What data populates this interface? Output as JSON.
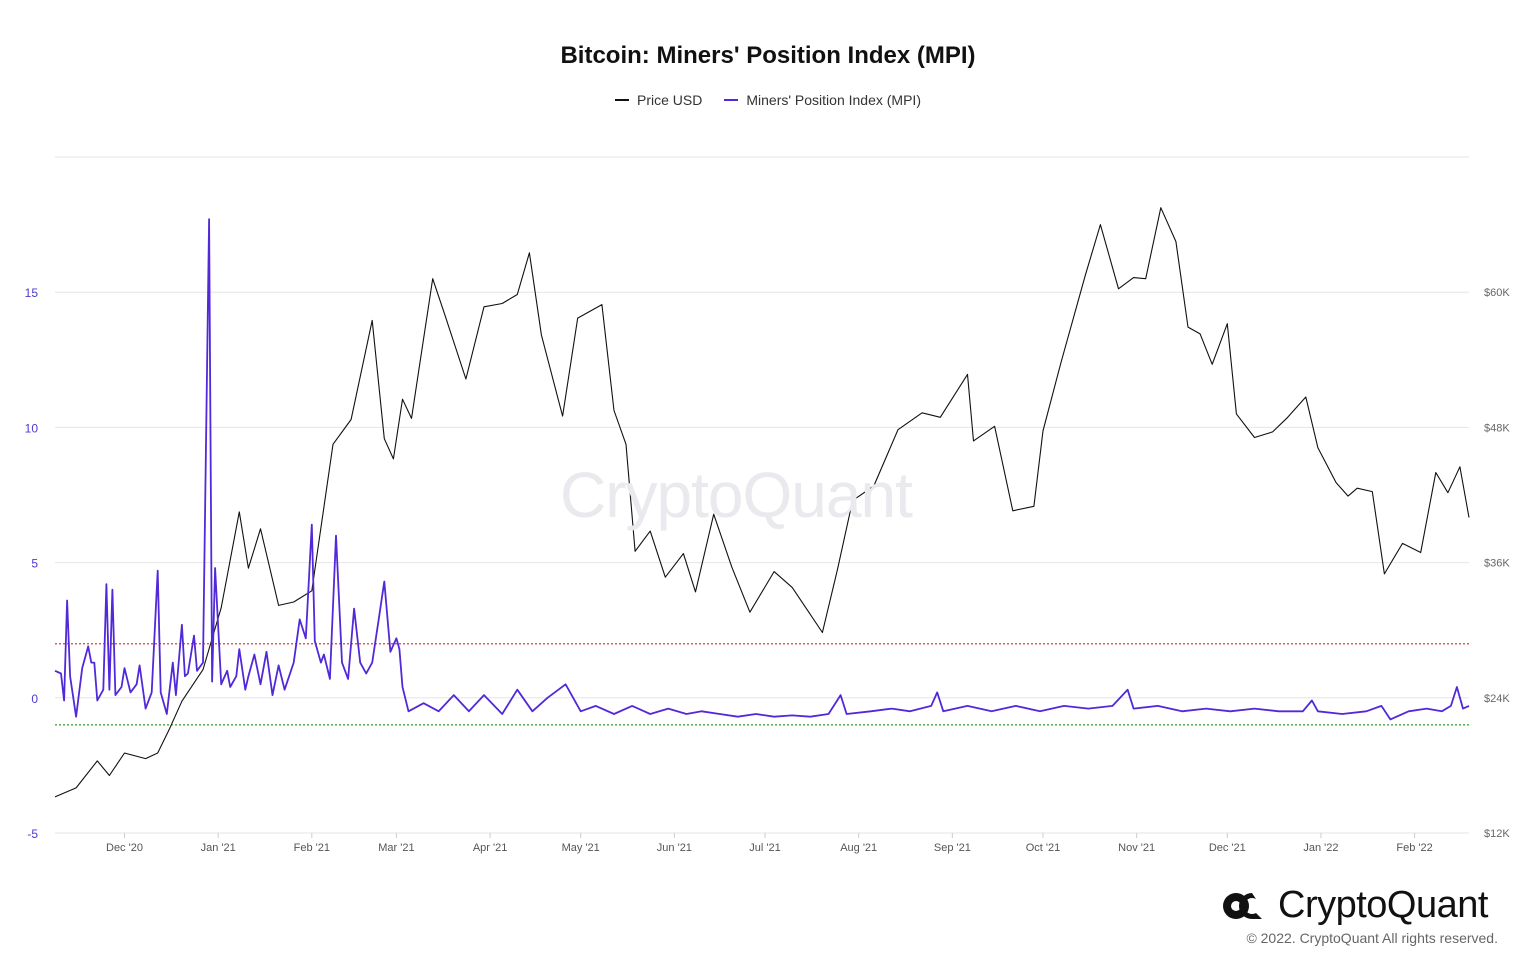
{
  "chart_data": {
    "title": "Bitcoin: Miners' Position Index (MPI)",
    "type": "line",
    "legend_position": "top-center",
    "grid": true,
    "x_ticks": [
      "Dec '20",
      "Jan '21",
      "Feb '21",
      "Mar '21",
      "Apr '21",
      "May '21",
      "Jun '21",
      "Jul '21",
      "Aug '21",
      "Sep '21",
      "Oct '21",
      "Nov '21",
      "Dec '21",
      "Jan '22",
      "Feb '22"
    ],
    "x_range": [
      "2020-11-08",
      "2022-02-19"
    ],
    "y_left": {
      "range": [
        -5,
        20
      ],
      "ticks": [
        "-5",
        "0",
        "5",
        "10",
        "15"
      ]
    },
    "y_right": {
      "range": [
        12000,
        72000
      ],
      "ticks": [
        "$12K",
        "$24K",
        "$36K",
        "$48K",
        "$60K"
      ]
    },
    "reference_lines": [
      {
        "value": 2,
        "color": "#e23a3a",
        "style": "dotted"
      },
      {
        "value": -1,
        "color": "#2e9e2e",
        "style": "dotted"
      }
    ],
    "series": [
      {
        "name": "Price USD",
        "axis": "right",
        "color": "#111111",
        "points": [
          [
            "2020-11-08",
            15200
          ],
          [
            "2020-11-15",
            16000
          ],
          [
            "2020-11-22",
            18400
          ],
          [
            "2020-11-26",
            17100
          ],
          [
            "2020-12-01",
            19100
          ],
          [
            "2020-12-08",
            18600
          ],
          [
            "2020-12-12",
            19100
          ],
          [
            "2020-12-16",
            21300
          ],
          [
            "2020-12-20",
            23700
          ],
          [
            "2020-12-27",
            26500
          ],
          [
            "2021-01-02",
            32000
          ],
          [
            "2021-01-08",
            40500
          ],
          [
            "2021-01-11",
            35500
          ],
          [
            "2021-01-15",
            39000
          ],
          [
            "2021-01-21",
            32200
          ],
          [
            "2021-01-26",
            32500
          ],
          [
            "2021-02-01",
            33500
          ],
          [
            "2021-02-08",
            46500
          ],
          [
            "2021-02-14",
            48700
          ],
          [
            "2021-02-21",
            57500
          ],
          [
            "2021-02-25",
            47000
          ],
          [
            "2021-02-28",
            45200
          ],
          [
            "2021-03-03",
            50500
          ],
          [
            "2021-03-06",
            48800
          ],
          [
            "2021-03-13",
            61200
          ],
          [
            "2021-03-17",
            58000
          ],
          [
            "2021-03-24",
            52300
          ],
          [
            "2021-03-30",
            58700
          ],
          [
            "2021-04-05",
            59000
          ],
          [
            "2021-04-10",
            59800
          ],
          [
            "2021-04-14",
            63500
          ],
          [
            "2021-04-18",
            56200
          ],
          [
            "2021-04-25",
            49000
          ],
          [
            "2021-04-30",
            57700
          ],
          [
            "2021-05-08",
            58900
          ],
          [
            "2021-05-12",
            49500
          ],
          [
            "2021-05-16",
            46500
          ],
          [
            "2021-05-19",
            37000
          ],
          [
            "2021-05-24",
            38800
          ],
          [
            "2021-05-29",
            34700
          ],
          [
            "2021-06-04",
            36800
          ],
          [
            "2021-06-08",
            33400
          ],
          [
            "2021-06-14",
            40300
          ],
          [
            "2021-06-20",
            35600
          ],
          [
            "2021-06-26",
            31600
          ],
          [
            "2021-07-04",
            35200
          ],
          [
            "2021-07-10",
            33800
          ],
          [
            "2021-07-15",
            31800
          ],
          [
            "2021-07-20",
            29800
          ],
          [
            "2021-07-25",
            35400
          ],
          [
            "2021-07-30",
            41500
          ],
          [
            "2021-08-06",
            42800
          ],
          [
            "2021-08-14",
            47800
          ],
          [
            "2021-08-22",
            49300
          ],
          [
            "2021-08-28",
            48900
          ],
          [
            "2021-09-06",
            52700
          ],
          [
            "2021-09-08",
            46800
          ],
          [
            "2021-09-15",
            48100
          ],
          [
            "2021-09-21",
            40600
          ],
          [
            "2021-09-28",
            41000
          ],
          [
            "2021-10-01",
            47700
          ],
          [
            "2021-10-07",
            53800
          ],
          [
            "2021-10-15",
            61500
          ],
          [
            "2021-10-20",
            66000
          ],
          [
            "2021-10-26",
            60300
          ],
          [
            "2021-10-31",
            61300
          ],
          [
            "2021-11-04",
            61200
          ],
          [
            "2021-11-09",
            67500
          ],
          [
            "2021-11-14",
            64500
          ],
          [
            "2021-11-18",
            56900
          ],
          [
            "2021-11-22",
            56300
          ],
          [
            "2021-11-26",
            53600
          ],
          [
            "2021-12-01",
            57200
          ],
          [
            "2021-12-04",
            49200
          ],
          [
            "2021-12-10",
            47100
          ],
          [
            "2021-12-16",
            47600
          ],
          [
            "2021-12-21",
            48900
          ],
          [
            "2021-12-27",
            50700
          ],
          [
            "2021-12-31",
            46200
          ],
          [
            "2022-01-06",
            43100
          ],
          [
            "2022-01-10",
            41900
          ],
          [
            "2022-01-13",
            42600
          ],
          [
            "2022-01-18",
            42300
          ],
          [
            "2022-01-22",
            35000
          ],
          [
            "2022-01-28",
            37700
          ],
          [
            "2022-02-03",
            36900
          ],
          [
            "2022-02-08",
            44000
          ],
          [
            "2022-02-12",
            42200
          ],
          [
            "2022-02-16",
            44500
          ],
          [
            "2022-02-19",
            40000
          ]
        ]
      },
      {
        "name": "Miners' Position Index (MPI)",
        "axis": "left",
        "color": "#5129d8",
        "points": [
          [
            "2020-11-08",
            1.0
          ],
          [
            "2020-11-10",
            0.9
          ],
          [
            "2020-11-11",
            -0.1
          ],
          [
            "2020-11-12",
            3.6
          ],
          [
            "2020-11-13",
            0.8
          ],
          [
            "2020-11-15",
            -0.7
          ],
          [
            "2020-11-17",
            1.1
          ],
          [
            "2020-11-19",
            1.9
          ],
          [
            "2020-11-20",
            1.3
          ],
          [
            "2020-11-21",
            1.3
          ],
          [
            "2020-11-22",
            -0.1
          ],
          [
            "2020-11-24",
            0.3
          ],
          [
            "2020-11-25",
            4.2
          ],
          [
            "2020-11-26",
            0.3
          ],
          [
            "2020-11-27",
            4.0
          ],
          [
            "2020-11-28",
            0.1
          ],
          [
            "2020-11-30",
            0.4
          ],
          [
            "2020-12-01",
            1.1
          ],
          [
            "2020-12-03",
            0.2
          ],
          [
            "2020-12-05",
            0.5
          ],
          [
            "2020-12-06",
            1.2
          ],
          [
            "2020-12-08",
            -0.4
          ],
          [
            "2020-12-10",
            0.2
          ],
          [
            "2020-12-12",
            4.7
          ],
          [
            "2020-12-13",
            0.2
          ],
          [
            "2020-12-15",
            -0.6
          ],
          [
            "2020-12-17",
            1.3
          ],
          [
            "2020-12-18",
            0.1
          ],
          [
            "2020-12-20",
            2.7
          ],
          [
            "2020-12-21",
            0.8
          ],
          [
            "2020-12-22",
            0.9
          ],
          [
            "2020-12-24",
            2.3
          ],
          [
            "2020-12-25",
            1.0
          ],
          [
            "2020-12-27",
            1.3
          ],
          [
            "2020-12-29",
            17.7
          ],
          [
            "2020-12-30",
            0.6
          ],
          [
            "2020-12-31",
            4.8
          ],
          [
            "2021-01-02",
            0.5
          ],
          [
            "2021-01-04",
            1.0
          ],
          [
            "2021-01-05",
            0.4
          ],
          [
            "2021-01-07",
            0.8
          ],
          [
            "2021-01-08",
            1.8
          ],
          [
            "2021-01-10",
            0.3
          ],
          [
            "2021-01-11",
            0.8
          ],
          [
            "2021-01-13",
            1.6
          ],
          [
            "2021-01-15",
            0.5
          ],
          [
            "2021-01-17",
            1.7
          ],
          [
            "2021-01-19",
            0.1
          ],
          [
            "2021-01-21",
            1.2
          ],
          [
            "2021-01-23",
            0.3
          ],
          [
            "2021-01-26",
            1.3
          ],
          [
            "2021-01-28",
            2.9
          ],
          [
            "2021-01-30",
            2.2
          ],
          [
            "2021-02-01",
            6.4
          ],
          [
            "2021-02-02",
            2.1
          ],
          [
            "2021-02-04",
            1.3
          ],
          [
            "2021-02-05",
            1.6
          ],
          [
            "2021-02-07",
            0.7
          ],
          [
            "2021-02-09",
            6.0
          ],
          [
            "2021-02-11",
            1.3
          ],
          [
            "2021-02-13",
            0.7
          ],
          [
            "2021-02-15",
            3.3
          ],
          [
            "2021-02-17",
            1.3
          ],
          [
            "2021-02-19",
            0.9
          ],
          [
            "2021-02-21",
            1.3
          ],
          [
            "2021-02-23",
            2.8
          ],
          [
            "2021-02-25",
            4.3
          ],
          [
            "2021-02-27",
            1.7
          ],
          [
            "2021-03-01",
            2.2
          ],
          [
            "2021-03-02",
            1.8
          ],
          [
            "2021-03-03",
            0.4
          ],
          [
            "2021-03-05",
            -0.5
          ],
          [
            "2021-03-10",
            -0.2
          ],
          [
            "2021-03-15",
            -0.5
          ],
          [
            "2021-03-20",
            0.1
          ],
          [
            "2021-03-25",
            -0.5
          ],
          [
            "2021-03-30",
            0.1
          ],
          [
            "2021-04-05",
            -0.6
          ],
          [
            "2021-04-10",
            0.3
          ],
          [
            "2021-04-15",
            -0.5
          ],
          [
            "2021-04-20",
            0.0
          ],
          [
            "2021-04-26",
            0.5
          ],
          [
            "2021-05-01",
            -0.5
          ],
          [
            "2021-05-06",
            -0.3
          ],
          [
            "2021-05-12",
            -0.6
          ],
          [
            "2021-05-18",
            -0.3
          ],
          [
            "2021-05-24",
            -0.6
          ],
          [
            "2021-05-30",
            -0.4
          ],
          [
            "2021-06-05",
            -0.6
          ],
          [
            "2021-06-10",
            -0.5
          ],
          [
            "2021-06-16",
            -0.6
          ],
          [
            "2021-06-22",
            -0.7
          ],
          [
            "2021-06-28",
            -0.6
          ],
          [
            "2021-07-04",
            -0.7
          ],
          [
            "2021-07-10",
            -0.65
          ],
          [
            "2021-07-16",
            -0.7
          ],
          [
            "2021-07-22",
            -0.6
          ],
          [
            "2021-07-26",
            0.1
          ],
          [
            "2021-07-28",
            -0.6
          ],
          [
            "2021-08-05",
            -0.5
          ],
          [
            "2021-08-12",
            -0.4
          ],
          [
            "2021-08-18",
            -0.5
          ],
          [
            "2021-08-25",
            -0.3
          ],
          [
            "2021-08-27",
            0.2
          ],
          [
            "2021-08-29",
            -0.5
          ],
          [
            "2021-09-06",
            -0.3
          ],
          [
            "2021-09-14",
            -0.5
          ],
          [
            "2021-09-22",
            -0.3
          ],
          [
            "2021-09-30",
            -0.5
          ],
          [
            "2021-10-08",
            -0.3
          ],
          [
            "2021-10-16",
            -0.4
          ],
          [
            "2021-10-24",
            -0.3
          ],
          [
            "2021-10-29",
            0.3
          ],
          [
            "2021-10-31",
            -0.4
          ],
          [
            "2021-11-08",
            -0.3
          ],
          [
            "2021-11-16",
            -0.5
          ],
          [
            "2021-11-24",
            -0.4
          ],
          [
            "2021-12-02",
            -0.5
          ],
          [
            "2021-12-10",
            -0.4
          ],
          [
            "2021-12-18",
            -0.5
          ],
          [
            "2021-12-26",
            -0.5
          ],
          [
            "2021-12-29",
            -0.1
          ],
          [
            "2021-12-31",
            -0.5
          ],
          [
            "2022-01-08",
            -0.6
          ],
          [
            "2022-01-16",
            -0.5
          ],
          [
            "2022-01-21",
            -0.3
          ],
          [
            "2022-01-24",
            -0.8
          ],
          [
            "2022-01-30",
            -0.5
          ],
          [
            "2022-02-05",
            -0.4
          ],
          [
            "2022-02-10",
            -0.5
          ],
          [
            "2022-02-13",
            -0.3
          ],
          [
            "2022-02-15",
            0.4
          ],
          [
            "2022-02-17",
            -0.4
          ],
          [
            "2022-02-19",
            -0.3
          ]
        ]
      }
    ]
  },
  "watermark": "CryptoQuant",
  "brand": {
    "name": "CryptoQuant",
    "icon": "cryptoquant-logo-icon"
  },
  "copyright": "© 2022. CryptoQuant All rights reserved."
}
